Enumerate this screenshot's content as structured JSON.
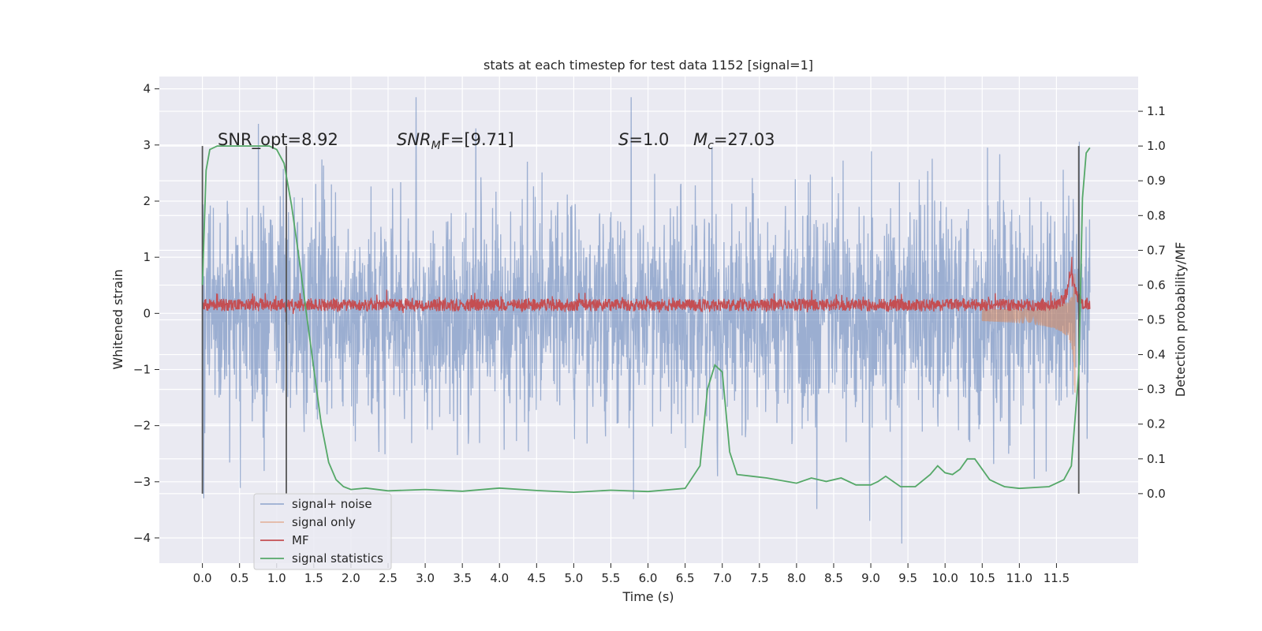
{
  "chart_data": {
    "type": "line",
    "title": "stats at each timestep for test data 1152 [signal=1]",
    "xlabel": "Time (s)",
    "ylabel_left": "Whitened strain",
    "ylabel_right": "Detection probability/MF",
    "xlim": [
      -0.58,
      12.6
    ],
    "ylim_left": [
      -4.45,
      4.22
    ],
    "ylim_right": [
      -0.2,
      1.2
    ],
    "x_ticks": [
      0.0,
      0.5,
      1.0,
      1.5,
      2.0,
      2.5,
      3.0,
      3.5,
      4.0,
      4.5,
      5.0,
      5.5,
      6.0,
      6.5,
      7.0,
      7.5,
      8.0,
      8.5,
      9.0,
      9.5,
      10.0,
      10.5,
      11.0,
      11.5
    ],
    "x_tick_labels": [
      "0.0",
      "0.5",
      "1.0",
      "1.5",
      "2.0",
      "2.5",
      "3.0",
      "3.5",
      "4.0",
      "4.5",
      "5.0",
      "5.5",
      "6.0",
      "6.5",
      "7.0",
      "7.5",
      "8.0",
      "8.5",
      "9.0",
      "9.5",
      "10.0",
      "10.5",
      "11.0",
      "11.5"
    ],
    "y_left_ticks": [
      -4,
      -3,
      -2,
      -1,
      0,
      1,
      2,
      3,
      4
    ],
    "y_left_tick_labels": [
      "−4",
      "−3",
      "−2",
      "−1",
      "0",
      "1",
      "2",
      "3",
      "4"
    ],
    "y_right_ticks": [
      0.0,
      0.1,
      0.2,
      0.3,
      0.4,
      0.5,
      0.6,
      0.7,
      0.8,
      0.9,
      1.0,
      1.1
    ],
    "y_right_tick_labels": [
      "0.0",
      "0.1",
      "0.2",
      "0.3",
      "0.4",
      "0.5",
      "0.6",
      "0.7",
      "0.8",
      "0.9",
      "1.0",
      "1.1"
    ],
    "annotations": {
      "snr_opt": "SNR_opt=8.92",
      "snr_mf_main": "SNR",
      "snr_mf_sub": "M",
      "snr_mf_rest": "F=[9.71]",
      "s_symbol": "S",
      "s_rest": "=1.0",
      "mc_symbol": "M",
      "mc_sub": "c",
      "mc_rest": "=27.03"
    },
    "vertical_lines_x": [
      0.0,
      1.13,
      11.8
    ],
    "vertical_lines_range_right": [
      0.0,
      1.0
    ],
    "legend": [
      "signal+ noise",
      "signal only",
      "MF",
      "signal statistics"
    ],
    "legend_location": "lower left",
    "series": [
      {
        "name": "signal statistics",
        "axis": "right",
        "color": "#55a868",
        "x": [
          0.0,
          0.05,
          0.1,
          0.2,
          0.3,
          0.5,
          0.7,
          0.9,
          1.0,
          1.1,
          1.2,
          1.3,
          1.4,
          1.5,
          1.6,
          1.7,
          1.8,
          1.9,
          2.0,
          2.2,
          2.5,
          3.0,
          3.5,
          4.0,
          4.5,
          5.0,
          5.5,
          6.0,
          6.5,
          6.7,
          6.8,
          6.9,
          7.0,
          7.1,
          7.2,
          7.4,
          7.6,
          8.0,
          8.2,
          8.4,
          8.6,
          8.8,
          9.0,
          9.1,
          9.2,
          9.4,
          9.6,
          9.8,
          9.9,
          10.0,
          10.1,
          10.2,
          10.3,
          10.4,
          10.6,
          10.8,
          11.0,
          11.4,
          11.6,
          11.7,
          11.8,
          11.85,
          11.9,
          11.95
        ],
        "y": [
          0.6,
          0.93,
          0.99,
          1.0,
          1.0,
          1.0,
          1.0,
          1.0,
          0.99,
          0.95,
          0.83,
          0.68,
          0.52,
          0.36,
          0.2,
          0.09,
          0.04,
          0.02,
          0.012,
          0.016,
          0.008,
          0.012,
          0.007,
          0.016,
          0.009,
          0.004,
          0.01,
          0.006,
          0.015,
          0.08,
          0.3,
          0.37,
          0.35,
          0.12,
          0.055,
          0.05,
          0.045,
          0.03,
          0.045,
          0.035,
          0.045,
          0.025,
          0.025,
          0.035,
          0.05,
          0.02,
          0.02,
          0.055,
          0.08,
          0.06,
          0.055,
          0.07,
          0.1,
          0.1,
          0.04,
          0.02,
          0.015,
          0.02,
          0.04,
          0.08,
          0.35,
          0.85,
          0.98,
          0.995
        ]
      }
    ],
    "signal_plus_noise": {
      "color": "#4c72b0",
      "alpha": 0.5,
      "core_sigma": 1.0,
      "extreme_range": [
        -4.1,
        3.85
      ]
    },
    "signal_only": {
      "color": "#dd8452",
      "alpha": 0.5,
      "chirp_end_time": 11.75,
      "peak_amplitude": 1.85
    },
    "mf": {
      "color": "#c44e52",
      "mean": 0.15,
      "spread": [
        0.0,
        0.35
      ],
      "peak_time": 11.7,
      "peak_value": 1.0
    }
  }
}
